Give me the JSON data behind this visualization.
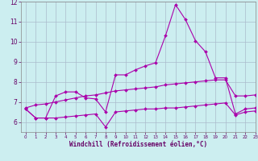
{
  "xlabel": "Windchill (Refroidissement éolien,°C)",
  "background_color": "#cceef0",
  "grid_color": "#aabbcc",
  "line_color": "#aa00aa",
  "x": [
    0,
    1,
    2,
    3,
    4,
    5,
    6,
    7,
    8,
    9,
    10,
    11,
    12,
    13,
    14,
    15,
    16,
    17,
    18,
    19,
    20,
    21,
    22,
    23
  ],
  "line1": [
    6.65,
    6.2,
    6.2,
    7.3,
    7.5,
    7.5,
    7.2,
    7.15,
    6.5,
    8.35,
    8.35,
    8.6,
    8.8,
    8.95,
    10.3,
    11.85,
    11.1,
    10.05,
    9.5,
    8.2,
    8.2,
    6.4,
    6.65,
    6.7
  ],
  "line2": [
    6.65,
    6.2,
    6.2,
    6.2,
    6.25,
    6.3,
    6.35,
    6.4,
    5.75,
    6.5,
    6.55,
    6.6,
    6.65,
    6.65,
    6.7,
    6.7,
    6.75,
    6.8,
    6.85,
    6.9,
    6.95,
    6.35,
    6.5,
    6.55
  ],
  "line3": [
    6.7,
    6.85,
    6.9,
    7.0,
    7.1,
    7.2,
    7.3,
    7.35,
    7.45,
    7.55,
    7.6,
    7.65,
    7.7,
    7.75,
    7.85,
    7.9,
    7.95,
    8.0,
    8.05,
    8.1,
    8.1,
    7.3,
    7.3,
    7.35
  ],
  "ylim": [
    5.5,
    12
  ],
  "xlim": [
    -0.5,
    23
  ],
  "yticks": [
    6,
    7,
    8,
    9,
    10,
    11,
    12
  ],
  "xticks": [
    0,
    1,
    2,
    3,
    4,
    5,
    6,
    7,
    8,
    9,
    10,
    11,
    12,
    13,
    14,
    15,
    16,
    17,
    18,
    19,
    20,
    21,
    22,
    23
  ]
}
